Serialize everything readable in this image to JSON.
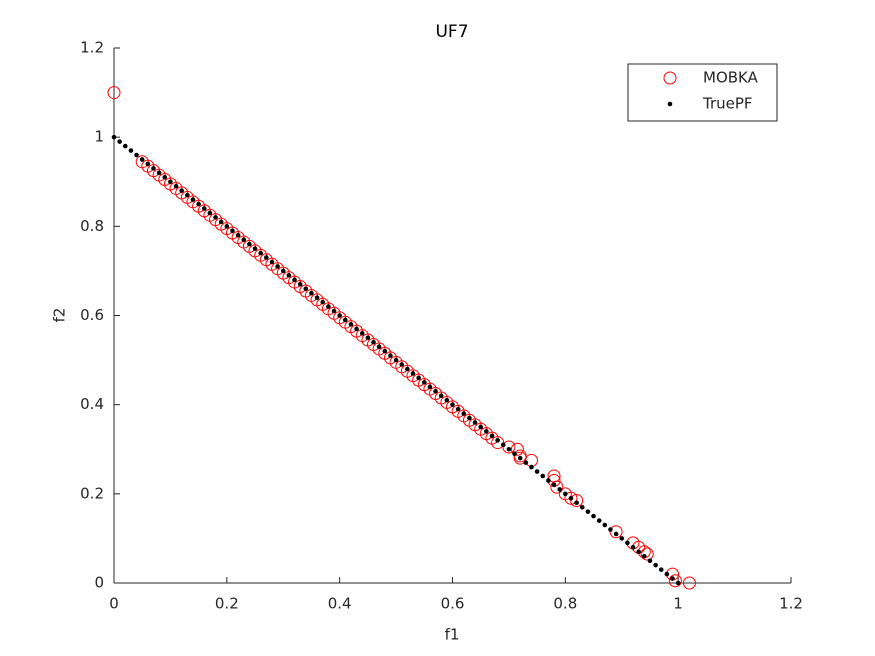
{
  "chart_data": {
    "type": "scatter",
    "title": "UF7",
    "xlabel": "f1",
    "ylabel": "f2",
    "xlim": [
      0,
      1.2
    ],
    "ylim": [
      0,
      1.2
    ],
    "xticks": [
      0,
      0.2,
      0.4,
      0.6,
      0.8,
      1,
      1.2
    ],
    "yticks": [
      0,
      0.2,
      0.4,
      0.6,
      0.8,
      1,
      1.2
    ],
    "grid": false,
    "legend": "northeast",
    "series": [
      {
        "name": "MOBKA",
        "color": "#ff0000",
        "marker": "o",
        "x": [
          0,
          0.05,
          0.06,
          0.07,
          0.08,
          0.09,
          0.1,
          0.11,
          0.12,
          0.13,
          0.14,
          0.15,
          0.16,
          0.17,
          0.18,
          0.19,
          0.2,
          0.21,
          0.22,
          0.23,
          0.24,
          0.25,
          0.26,
          0.27,
          0.28,
          0.29,
          0.3,
          0.31,
          0.32,
          0.33,
          0.34,
          0.35,
          0.36,
          0.37,
          0.38,
          0.39,
          0.4,
          0.41,
          0.42,
          0.43,
          0.44,
          0.45,
          0.46,
          0.47,
          0.48,
          0.49,
          0.5,
          0.51,
          0.52,
          0.53,
          0.54,
          0.55,
          0.56,
          0.57,
          0.58,
          0.59,
          0.6,
          0.61,
          0.62,
          0.63,
          0.64,
          0.65,
          0.66,
          0.67,
          0.68,
          0.7,
          0.715,
          0.72,
          0.72,
          0.74,
          0.78,
          0.78,
          0.785,
          0.8,
          0.81,
          0.82,
          0.89,
          0.92,
          0.93,
          0.94,
          0.945,
          0.99,
          0.995,
          1.02
        ],
        "values": [
          1.1,
          0.945,
          0.935,
          0.925,
          0.915,
          0.905,
          0.895,
          0.885,
          0.875,
          0.865,
          0.855,
          0.845,
          0.835,
          0.825,
          0.815,
          0.805,
          0.795,
          0.785,
          0.775,
          0.765,
          0.755,
          0.745,
          0.735,
          0.725,
          0.715,
          0.705,
          0.695,
          0.685,
          0.675,
          0.665,
          0.655,
          0.645,
          0.635,
          0.625,
          0.615,
          0.605,
          0.595,
          0.585,
          0.575,
          0.565,
          0.555,
          0.545,
          0.535,
          0.525,
          0.515,
          0.505,
          0.495,
          0.485,
          0.475,
          0.465,
          0.455,
          0.445,
          0.435,
          0.425,
          0.415,
          0.405,
          0.395,
          0.385,
          0.375,
          0.365,
          0.355,
          0.345,
          0.335,
          0.325,
          0.315,
          0.305,
          0.3,
          0.285,
          0.28,
          0.275,
          0.24,
          0.23,
          0.215,
          0.2,
          0.19,
          0.185,
          0.115,
          0.09,
          0.08,
          0.07,
          0.065,
          0.02,
          0.005,
          0
        ]
      },
      {
        "name": "TruePF",
        "color": "#000000",
        "marker": ".",
        "x": [
          0,
          0.01,
          0.02,
          0.03,
          0.04,
          0.05,
          0.06,
          0.07,
          0.08,
          0.09,
          0.1,
          0.11,
          0.12,
          0.13,
          0.14,
          0.15,
          0.16,
          0.17,
          0.18,
          0.19,
          0.2,
          0.21,
          0.22,
          0.23,
          0.24,
          0.25,
          0.26,
          0.27,
          0.28,
          0.29,
          0.3,
          0.31,
          0.32,
          0.33,
          0.34,
          0.35,
          0.36,
          0.37,
          0.38,
          0.39,
          0.4,
          0.41,
          0.42,
          0.43,
          0.44,
          0.45,
          0.46,
          0.47,
          0.48,
          0.49,
          0.5,
          0.51,
          0.52,
          0.53,
          0.54,
          0.55,
          0.56,
          0.57,
          0.58,
          0.59,
          0.6,
          0.61,
          0.62,
          0.63,
          0.64,
          0.65,
          0.66,
          0.67,
          0.68,
          0.69,
          0.7,
          0.71,
          0.72,
          0.73,
          0.74,
          0.75,
          0.76,
          0.77,
          0.78,
          0.79,
          0.8,
          0.81,
          0.82,
          0.83,
          0.84,
          0.85,
          0.86,
          0.87,
          0.88,
          0.89,
          0.9,
          0.91,
          0.92,
          0.93,
          0.94,
          0.95,
          0.96,
          0.97,
          0.98,
          0.99,
          1
        ],
        "values": [
          1,
          0.99,
          0.98,
          0.97,
          0.96,
          0.95,
          0.94,
          0.93,
          0.92,
          0.91,
          0.9,
          0.89,
          0.88,
          0.87,
          0.86,
          0.85,
          0.84,
          0.83,
          0.82,
          0.81,
          0.8,
          0.79,
          0.78,
          0.77,
          0.76,
          0.75,
          0.74,
          0.73,
          0.72,
          0.71,
          0.7,
          0.69,
          0.68,
          0.67,
          0.66,
          0.65,
          0.64,
          0.63,
          0.62,
          0.61,
          0.6,
          0.59,
          0.58,
          0.57,
          0.56,
          0.55,
          0.54,
          0.53,
          0.52,
          0.51,
          0.5,
          0.49,
          0.48,
          0.47,
          0.46,
          0.45,
          0.44,
          0.43,
          0.42,
          0.41,
          0.4,
          0.39,
          0.38,
          0.37,
          0.36,
          0.35,
          0.34,
          0.33,
          0.32,
          0.31,
          0.3,
          0.29,
          0.28,
          0.27,
          0.26,
          0.25,
          0.24,
          0.23,
          0.22,
          0.21,
          0.2,
          0.19,
          0.18,
          0.17,
          0.16,
          0.15,
          0.14,
          0.13,
          0.12,
          0.11,
          0.1,
          0.09,
          0.08,
          0.07,
          0.06,
          0.05,
          0.04,
          0.03,
          0.02,
          0.01,
          0
        ]
      }
    ]
  }
}
